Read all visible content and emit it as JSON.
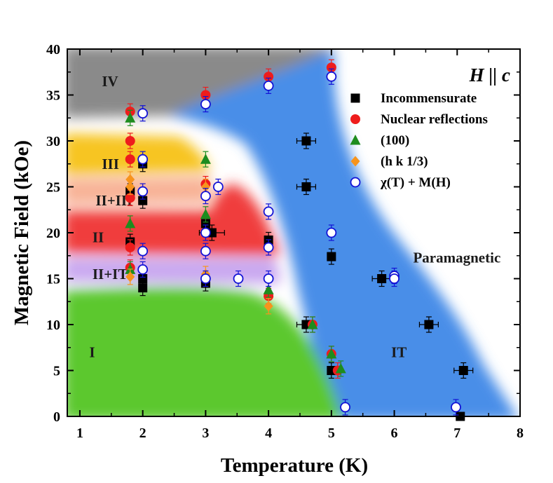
{
  "chart_data": {
    "type": "scatter",
    "title": "",
    "xlabel": "Temperature (K)",
    "ylabel": "Magnetic Field (kOe)",
    "xlim": [
      0.8,
      8
    ],
    "ylim": [
      0,
      40
    ],
    "xticks": [
      "1",
      "2",
      "3",
      "4",
      "5",
      "6",
      "7",
      "8"
    ],
    "yticks": [
      "0",
      "5",
      "10",
      "15",
      "20",
      "25",
      "30",
      "35",
      "40"
    ],
    "field_label": "H || c",
    "regions": [
      {
        "name": "IV",
        "color": "#8a8a8a",
        "label_at": [
          1.35,
          36.5
        ]
      },
      {
        "name": "III",
        "color": "#f7c520",
        "label_at": [
          1.35,
          27.5
        ]
      },
      {
        "name": "II+III",
        "color": "#f8b296",
        "label_at": [
          1.25,
          23.5
        ]
      },
      {
        "name": "II",
        "color": "#f03c3c",
        "label_at": [
          1.2,
          19.5
        ]
      },
      {
        "name": "II+IT",
        "color": "#c9a8f0",
        "label_at": [
          1.2,
          15.5
        ]
      },
      {
        "name": "I",
        "color": "#5cc82e",
        "label_at": [
          1.15,
          7.0
        ]
      },
      {
        "name": "IT",
        "color": "#4a8ee8",
        "label_at": [
          5.95,
          7.0
        ]
      },
      {
        "name": "Paramagnetic",
        "color": "#ffffff",
        "label_at": [
          6.3,
          17.3
        ]
      }
    ],
    "series": [
      {
        "name": "Incommensurate",
        "marker": "square",
        "color": "#000000",
        "points": [
          [
            1.8,
            19.0
          ],
          [
            1.8,
            24.5
          ],
          [
            2.0,
            14.0
          ],
          [
            2.0,
            15.0
          ],
          [
            2.0,
            23.5
          ],
          [
            2.0,
            27.5
          ],
          [
            3.0,
            14.5
          ],
          [
            3.0,
            21.0
          ],
          [
            3.1,
            20.0
          ],
          [
            4.0,
            19.2
          ],
          [
            4.6,
            30.0
          ],
          [
            4.6,
            25.0
          ],
          [
            4.6,
            10.0
          ],
          [
            5.0,
            17.4
          ],
          [
            5.0,
            5.0
          ],
          [
            5.8,
            15.0
          ],
          [
            6.55,
            10.0
          ],
          [
            7.1,
            5.0
          ],
          [
            7.05,
            0.0
          ]
        ],
        "xerr": [
          [
            4.6,
            30.0,
            0.15
          ],
          [
            4.6,
            25.0,
            0.15
          ],
          [
            4.6,
            10.0,
            0.15
          ],
          [
            5.8,
            15.0,
            0.15
          ],
          [
            6.55,
            10.0,
            0.15
          ],
          [
            7.1,
            5.0,
            0.15
          ],
          [
            3.1,
            20.0,
            0.2
          ]
        ]
      },
      {
        "name": "Nuclear reflections",
        "marker": "circle",
        "color": "#ee1c1c",
        "points": [
          [
            1.8,
            33.2
          ],
          [
            1.8,
            30.0
          ],
          [
            1.8,
            28.0
          ],
          [
            1.8,
            23.8
          ],
          [
            1.8,
            18.4
          ],
          [
            1.8,
            16.2
          ],
          [
            3.0,
            35.0
          ],
          [
            3.0,
            25.3
          ],
          [
            4.0,
            37.0
          ],
          [
            4.0,
            13.1
          ],
          [
            4.7,
            10.0
          ],
          [
            5.0,
            38.0
          ],
          [
            5.0,
            6.8
          ],
          [
            5.1,
            5.0
          ]
        ]
      },
      {
        "name": "(100)",
        "marker": "triangle",
        "color": "#1e8c1e",
        "points": [
          [
            1.8,
            32.5
          ],
          [
            1.8,
            21.0
          ],
          [
            1.8,
            16.0
          ],
          [
            3.0,
            28.0
          ],
          [
            3.0,
            22.0
          ],
          [
            4.0,
            13.8
          ],
          [
            4.7,
            10.0
          ],
          [
            5.0,
            6.8
          ],
          [
            5.15,
            5.2
          ]
        ]
      },
      {
        "name": "(h k 1/3)",
        "marker": "diamond",
        "color": "#f7941d",
        "points": [
          [
            1.8,
            25.8
          ],
          [
            1.8,
            25.0
          ],
          [
            1.8,
            15.2
          ],
          [
            3.0,
            25.0
          ],
          [
            3.0,
            15.5
          ],
          [
            4.0,
            12.0
          ]
        ]
      },
      {
        "name": "χ(T) + M(H)",
        "marker": "open-circle",
        "color": "#1212d6",
        "points": [
          [
            2.0,
            33.0
          ],
          [
            2.0,
            28.0
          ],
          [
            2.0,
            24.5
          ],
          [
            2.0,
            18.0
          ],
          [
            2.0,
            16.0
          ],
          [
            3.0,
            34.0
          ],
          [
            3.0,
            24.0
          ],
          [
            3.0,
            20.0
          ],
          [
            3.0,
            18.0
          ],
          [
            3.0,
            15.0
          ],
          [
            3.2,
            25.0
          ],
          [
            3.52,
            15.0
          ],
          [
            4.0,
            36.0
          ],
          [
            4.0,
            22.3
          ],
          [
            4.0,
            18.4
          ],
          [
            4.0,
            15.0
          ],
          [
            5.0,
            37.0
          ],
          [
            5.0,
            20.0
          ],
          [
            6.0,
            15.3
          ],
          [
            6.0,
            15.0
          ],
          [
            5.22,
            1.0
          ],
          [
            6.98,
            1.0
          ]
        ]
      }
    ],
    "legend": {
      "placement": "top-right",
      "entries": [
        "Incommensurate",
        "Nuclear reflections",
        "(100)",
        "(h k 1/3)",
        "χ(T) + M(H)"
      ]
    }
  }
}
